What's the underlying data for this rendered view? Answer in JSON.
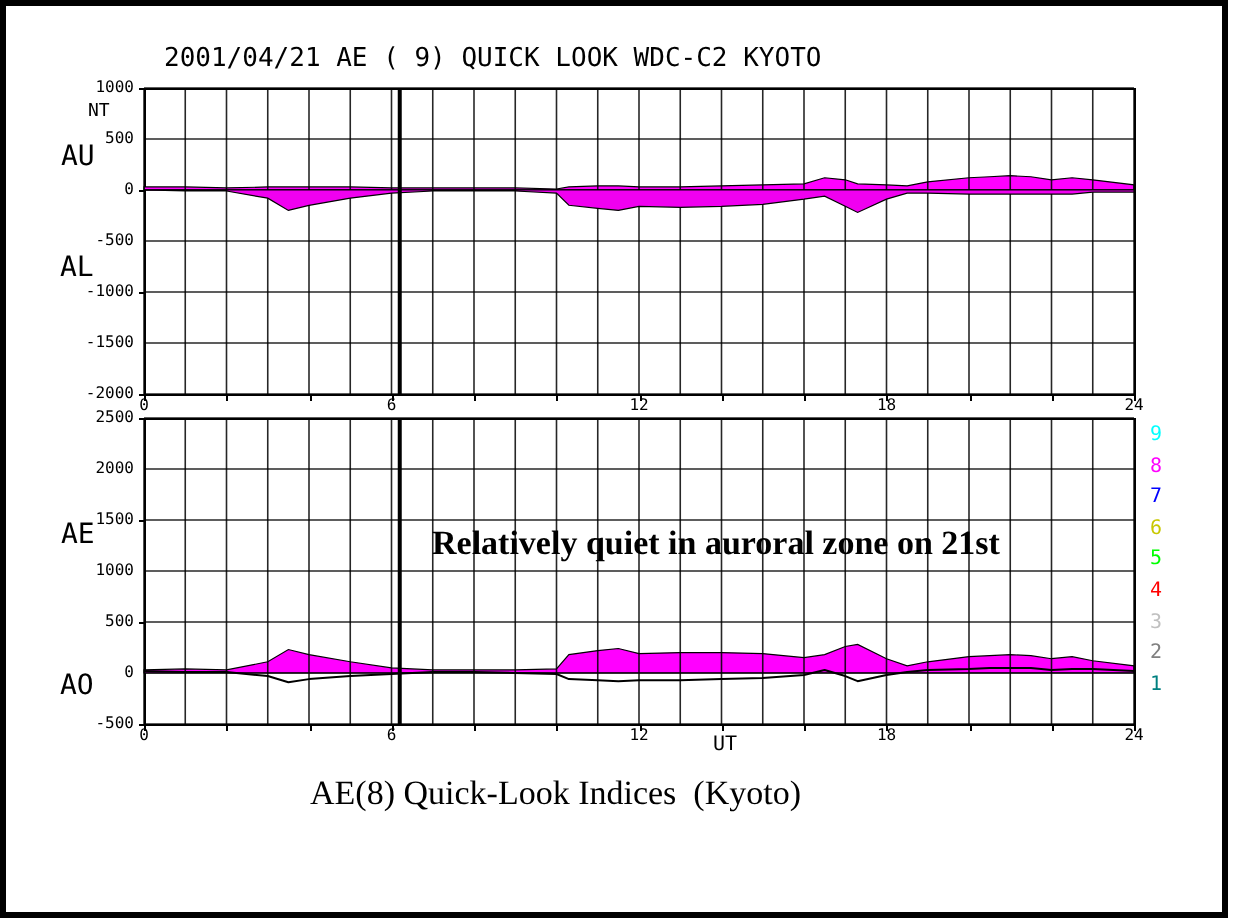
{
  "chart_data": [
    {
      "type": "area",
      "title": "2001/04/21   AE ( 9)   QUICK LOOK   WDC-C2 KYOTO",
      "ylabel": "AU",
      "x": [
        0,
        1,
        2,
        3,
        3.5,
        4,
        5,
        6,
        7,
        8,
        9,
        10,
        10.3,
        11,
        11.5,
        12,
        13,
        14,
        15,
        16,
        16.5,
        17,
        17.3,
        18,
        18.5,
        19,
        20,
        20.5,
        21,
        21.5,
        22,
        22.5,
        23,
        24
      ],
      "series": [
        {
          "type": "area",
          "color": "#ff00ff",
          "values": [
            30,
            30,
            20,
            30,
            30,
            30,
            30,
            20,
            20,
            20,
            20,
            10,
            30,
            40,
            40,
            30,
            30,
            40,
            50,
            60,
            120,
            100,
            60,
            50,
            40,
            80,
            120,
            130,
            140,
            130,
            100,
            120,
            100,
            50
          ]
        },
        {
          "type": "area",
          "color": "#f000f0",
          "values": [
            0,
            -10,
            -10,
            -80,
            -200,
            -150,
            -80,
            -30,
            -10,
            -10,
            -10,
            -30,
            -150,
            -180,
            -200,
            -160,
            -170,
            -160,
            -140,
            -90,
            -60,
            -160,
            -220,
            -90,
            -30,
            -30,
            -40,
            -40,
            -40,
            -40,
            -40,
            -40,
            -20,
            -20
          ]
        }
      ],
      "xlim": [
        0,
        24
      ],
      "xticks": [
        0,
        {
          "value": 1,
          "label": null
        },
        {
          "value": 2,
          "label": null
        },
        {
          "value": 3,
          "label": null
        },
        {
          "value": 4,
          "label": null
        },
        {
          "value": 5,
          "label": null
        },
        6,
        {
          "value": 7,
          "label": null
        },
        {
          "value": 8,
          "label": null
        },
        {
          "value": 9,
          "label": null
        },
        {
          "value": 10,
          "label": null
        },
        {
          "value": 11,
          "label": null
        },
        12,
        {
          "value": 13,
          "label": null
        },
        {
          "value": 14,
          "label": null
        },
        {
          "value": 15,
          "label": null
        },
        {
          "value": 16,
          "label": null
        },
        {
          "value": 17,
          "label": null
        },
        18,
        {
          "value": 19,
          "label": null
        },
        {
          "value": 20,
          "label": null
        },
        {
          "value": 21,
          "label": null
        },
        {
          "value": 22,
          "label": null
        },
        {
          "value": 23,
          "label": null
        },
        24
      ],
      "ylim": [
        -2000,
        1000
      ],
      "yticks": [
        -2000,
        -1500,
        -1000,
        -500,
        0,
        500,
        1000
      ],
      "grid": true,
      "ref_lines": [
        {
          "axis": "x",
          "value": 6.2,
          "color": "#000000"
        }
      ],
      "annotations": [
        "NT",
        "AL"
      ]
    },
    {
      "type": "area",
      "ylabel": "AE",
      "xlabel": "UT",
      "x": [
        0,
        1,
        2,
        3,
        3.5,
        4,
        5,
        6,
        7,
        8,
        9,
        10,
        10.3,
        11,
        11.5,
        12,
        13,
        14,
        15,
        16,
        16.5,
        17,
        17.3,
        18,
        18.5,
        19,
        20,
        20.5,
        21,
        21.5,
        22,
        22.5,
        23,
        24
      ],
      "series": [
        {
          "type": "area",
          "color": "#ff00ff",
          "values": [
            30,
            40,
            30,
            110,
            230,
            180,
            110,
            50,
            30,
            30,
            30,
            40,
            180,
            220,
            240,
            190,
            200,
            200,
            190,
            150,
            180,
            260,
            280,
            140,
            70,
            110,
            160,
            170,
            180,
            170,
            140,
            160,
            120,
            70
          ]
        },
        {
          "type": "line",
          "color": "#000000",
          "values": [
            20,
            10,
            10,
            -30,
            -90,
            -60,
            -30,
            -10,
            10,
            10,
            0,
            -10,
            -60,
            -70,
            -80,
            -70,
            -70,
            -60,
            -50,
            -20,
            30,
            -30,
            -80,
            -20,
            10,
            30,
            40,
            50,
            50,
            50,
            30,
            40,
            40,
            20
          ]
        }
      ],
      "xlim": [
        0,
        24
      ],
      "xticks": [
        0,
        {
          "value": 1,
          "label": null
        },
        {
          "value": 2,
          "label": null
        },
        {
          "value": 3,
          "label": null
        },
        {
          "value": 4,
          "label": null
        },
        {
          "value": 5,
          "label": null
        },
        6,
        {
          "value": 7,
          "label": null
        },
        {
          "value": 8,
          "label": null
        },
        {
          "value": 9,
          "label": null
        },
        {
          "value": 10,
          "label": null
        },
        {
          "value": 11,
          "label": null
        },
        12,
        {
          "value": 13,
          "label": null
        },
        {
          "value": 14,
          "label": null
        },
        {
          "value": 15,
          "label": null
        },
        {
          "value": 16,
          "label": null
        },
        {
          "value": 17,
          "label": null
        },
        18,
        {
          "value": 19,
          "label": null
        },
        {
          "value": 20,
          "label": null
        },
        {
          "value": 21,
          "label": null
        },
        {
          "value": 22,
          "label": null
        },
        {
          "value": 23,
          "label": null
        },
        24
      ],
      "ylim": [
        -500,
        2500
      ],
      "yticks": [
        -500,
        0,
        500,
        1000,
        1500,
        2000,
        2500
      ],
      "grid": true,
      "ref_lines": [
        {
          "axis": "x",
          "value": 6.2,
          "color": "#000000"
        }
      ],
      "annotations": [
        "AO",
        "Relatively quiet in auroral zone on 21st",
        "9",
        "8",
        "7",
        "6",
        "5",
        "4",
        "3",
        "2",
        "1",
        "AE(8) Quick-Look Indices  (Kyoto)"
      ]
    }
  ]
}
